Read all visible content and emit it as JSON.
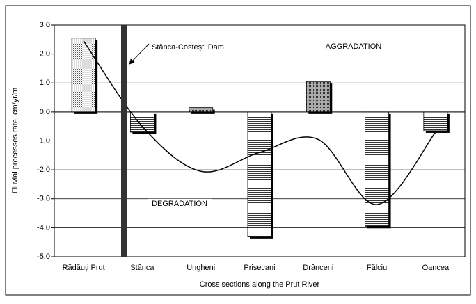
{
  "chart_data": {
    "type": "bar",
    "x_label": "Cross sections along the Prut River",
    "y_label": "Fluvial processes rate, cm/yr/m",
    "annotations": {
      "dam": "Stânca-Costeşti Dam",
      "aggradation": "AGGRADATION",
      "degradation": "DEGRADATION"
    },
    "categories": [
      "Rădăuţi Prut",
      "Stânca",
      "Ungheni",
      "Prisecani",
      "Drânceni",
      "Fălciu",
      "Oancea"
    ],
    "values": [
      2.55,
      -0.7,
      0.15,
      -4.3,
      1.05,
      -3.95,
      -0.65
    ],
    "fills": [
      "dots",
      "hlines",
      "dots-dark",
      "hlines",
      "dots-dark",
      "hlines",
      "hlines"
    ],
    "trend": [
      2.45,
      -0.5,
      -2.05,
      -1.4,
      -0.95,
      -3.2,
      -0.7
    ],
    "ylim": [
      -5,
      3
    ],
    "yticks": [
      {
        "value": 3,
        "label": "3.0"
      },
      {
        "value": 2,
        "label": "2.0"
      },
      {
        "value": 1,
        "label": "1.0"
      },
      {
        "value": 0,
        "label": "0.0"
      },
      {
        "value": -1,
        "label": "-1.0"
      },
      {
        "value": -2,
        "label": "-2.0"
      },
      {
        "value": -3,
        "label": "-3.0"
      },
      {
        "value": -4,
        "label": "-4.0"
      },
      {
        "value": -5,
        "label": "-5.0"
      }
    ],
    "grid": true
  }
}
